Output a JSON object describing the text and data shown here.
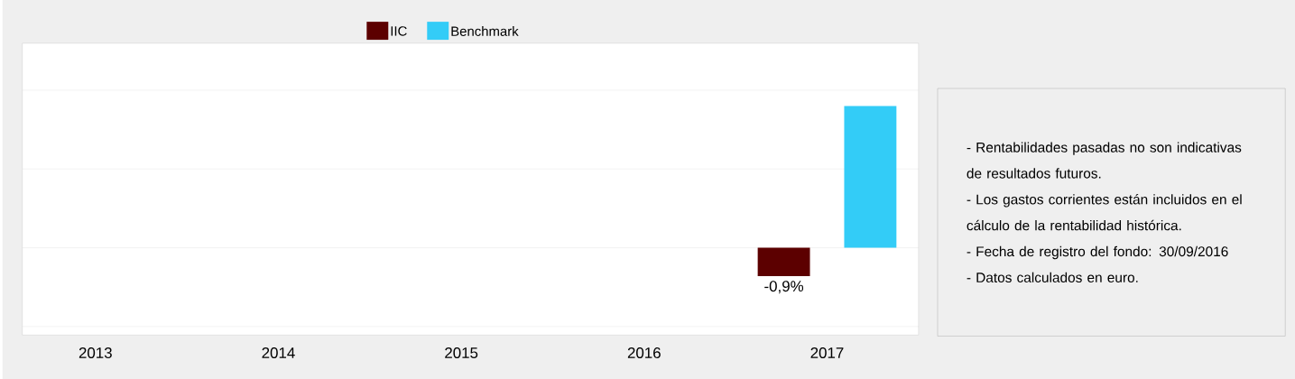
{
  "chart_data": {
    "type": "bar",
    "grid": "y",
    "legend": "top",
    "tick_labels": "x",
    "ylim": [
      -2.77,
      6.49
    ],
    "yticks": [
      {
        "value": -2.5,
        "label": null
      },
      {
        "value": 0,
        "label": null
      },
      {
        "value": 2.5,
        "label": null
      },
      {
        "value": 5,
        "label": null
      }
    ],
    "categories": [
      "2013",
      "2014",
      "2015",
      "2016",
      "2017"
    ],
    "series": [
      {
        "name": "IIC",
        "color": "#5c0000",
        "values": [
          null,
          null,
          null,
          null,
          -0.9
        ],
        "value_labels": [
          null,
          null,
          null,
          null,
          "-0,9%"
        ]
      },
      {
        "name": "Benchmark",
        "color": "#33ccf7",
        "values": [
          null,
          null,
          null,
          null,
          4.5
        ]
      }
    ],
    "annotations": [
      "- Rentabilidades pasadas no son indicativas de resultados futuros.",
      "- Los gastos corrientes están incluidos en el cálculo de la rentabilidad histórica.",
      "- Fecha de registro del fondo: 30/09/2016",
      "- Datos calculados en euro."
    ]
  }
}
